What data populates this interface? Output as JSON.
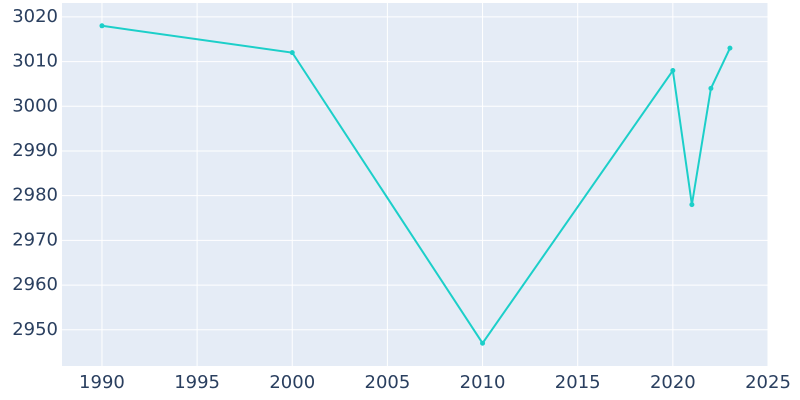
{
  "chart_data": {
    "type": "line",
    "x": [
      1990,
      2000,
      2010,
      2020,
      2021,
      2022,
      2023
    ],
    "series": [
      {
        "color": "#1ccfc9",
        "values": [
          3018,
          3012,
          2947,
          3008,
          2978,
          3004,
          3013
        ]
      }
    ],
    "xlim": [
      1987.9,
      2025
    ],
    "xticks": [
      1990,
      1995,
      2000,
      2005,
      2010,
      2015,
      2020,
      2025
    ],
    "ylim": [
      2941.9,
      3023.1
    ],
    "yticks": [
      2950,
      2960,
      2970,
      2980,
      2990,
      3000,
      3010,
      3020
    ],
    "grid": true
  }
}
